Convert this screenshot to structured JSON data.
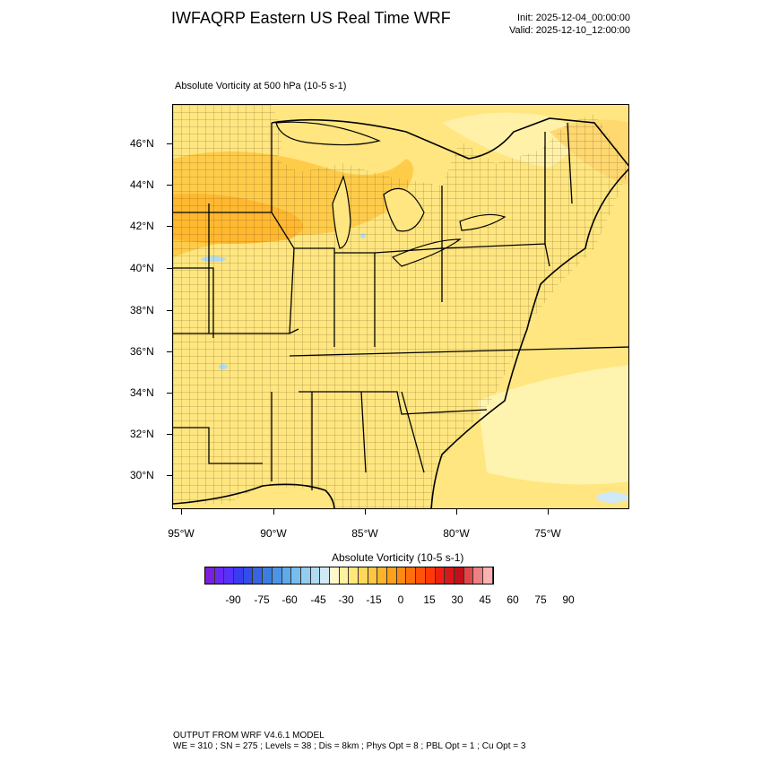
{
  "header": {
    "title": "IWFAQRP Eastern US Real Time WRF",
    "init": "Init: 2025-12-04_00:00:00",
    "valid": "Valid: 2025-12-10_12:00:00"
  },
  "plot": {
    "subtitle": "Absolute Vorticity at 500 hPa   (10-5 s-1)",
    "lat_labels": [
      "46°N",
      "44°N",
      "42°N",
      "40°N",
      "38°N",
      "36°N",
      "34°N",
      "32°N",
      "30°N"
    ],
    "lon_labels": [
      "95°W",
      "90°W",
      "85°W",
      "80°W",
      "75°W"
    ]
  },
  "colorbar": {
    "title": "Absolute Vorticity  (10-5 s-1)",
    "labels": [
      "-90",
      "-75",
      "-60",
      "-45",
      "-30",
      "-15",
      "0",
      "15",
      "30",
      "45",
      "60",
      "75",
      "90"
    ],
    "colors": [
      "#7b1fe0",
      "#6a28f0",
      "#5532f5",
      "#3a3cf0",
      "#2f4fe8",
      "#3566e0",
      "#3b7ee0",
      "#4c94e6",
      "#5eaaeb",
      "#77bdef",
      "#93cdf2",
      "#b0dbf5",
      "#cfe9f7",
      "#fff8cc",
      "#fff1a0",
      "#ffe77a",
      "#ffd85a",
      "#ffc640",
      "#ffb42a",
      "#ffa01a",
      "#ff8a10",
      "#ff700a",
      "#ff5408",
      "#ff3a08",
      "#f02010",
      "#d81818",
      "#c01018",
      "#e04848",
      "#f08080",
      "#ffb0b0"
    ]
  },
  "footer": {
    "line1": "OUTPUT FROM WRF V4.6.1 MODEL",
    "line2": "WE = 310 ; SN = 275 ; Levels = 38 ; Dis = 8km ; Phys Opt = 8 ; PBL Opt = 1 ; Cu Opt = 3"
  }
}
